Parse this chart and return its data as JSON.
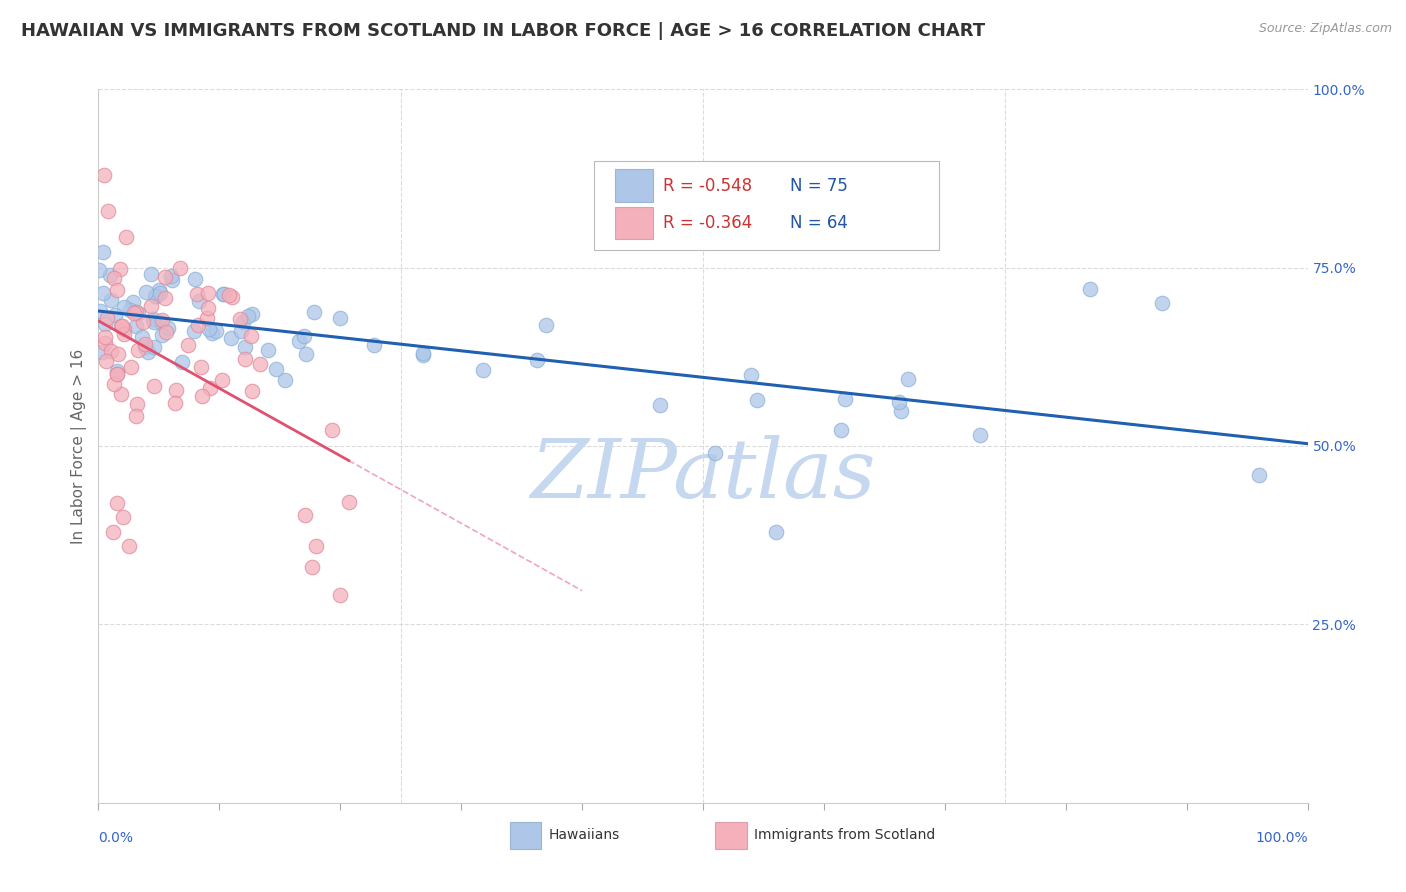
{
  "title": "HAWAIIAN VS IMMIGRANTS FROM SCOTLAND IN LABOR FORCE | AGE > 16 CORRELATION CHART",
  "source_text": "Source: ZipAtlas.com",
  "ylabel": "In Labor Force | Age > 16",
  "xlim": [
    0.0,
    1.0
  ],
  "ylim": [
    0.0,
    1.0
  ],
  "y_tick_labels_right": [
    "100.0%",
    "75.0%",
    "50.0%",
    "25.0%"
  ],
  "y_tick_positions_right": [
    1.0,
    0.75,
    0.5,
    0.25
  ],
  "hawaiians_R": -0.548,
  "hawaiians_N": 75,
  "scotland_R": -0.364,
  "scotland_N": 64,
  "hawaii_color": "#aec6e8",
  "scotland_color": "#f4b0bb",
  "hawaii_line_color": "#2060b0",
  "scotland_line_color": "#e05070",
  "background_color": "#ffffff",
  "grid_color": "#cccccc",
  "watermark_color": "#c5d8f0",
  "title_color": "#333333",
  "legend_r_color": "#cc3333",
  "legend_n_color": "#2255aa",
  "title_fontsize": 13,
  "axis_label_fontsize": 11,
  "tick_fontsize": 10,
  "legend_fontsize": 12,
  "source_fontsize": 9
}
